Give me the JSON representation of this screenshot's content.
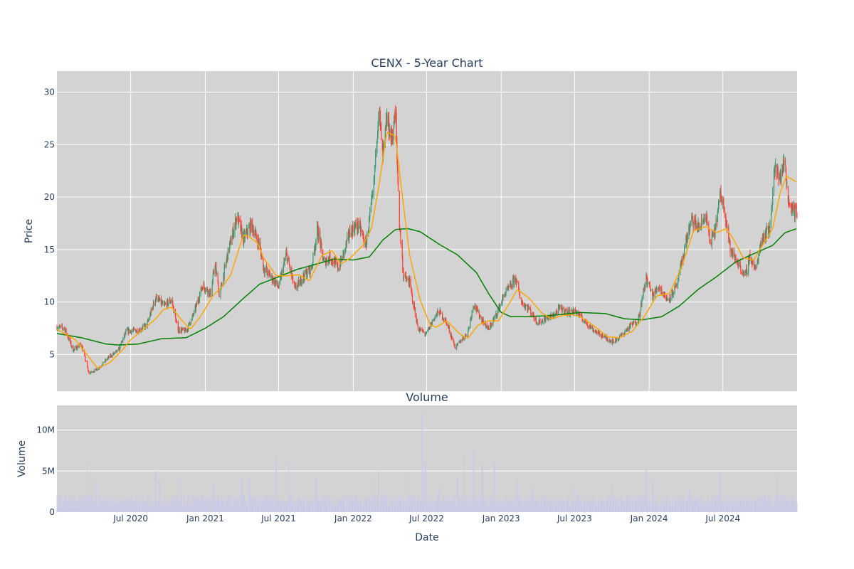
{
  "chart_data": [
    {
      "type": "candlestick",
      "title": "CENX - 5-Year Chart",
      "ylabel": "Price",
      "ylim": [
        1.5,
        32
      ],
      "xlim": [
        "2020-01-01",
        "2024-12-31"
      ],
      "yticks": [
        5,
        10,
        15,
        20,
        25,
        30
      ],
      "grid": true,
      "colors": {
        "up": "#3d9970",
        "down": "#ff4136",
        "ma_short": "#ffa500",
        "ma_long": "#008000",
        "plot_bg": "#d3d3d3"
      },
      "price_anchors": [
        [
          "2020-01-01",
          7.6
        ],
        [
          "2020-01-20",
          7.5
        ],
        [
          "2020-02-10",
          5.4
        ],
        [
          "2020-03-01",
          6.0
        ],
        [
          "2020-03-20",
          3.2
        ],
        [
          "2020-04-10",
          3.6
        ],
        [
          "2020-05-10",
          4.8
        ],
        [
          "2020-06-01",
          5.4
        ],
        [
          "2020-06-20",
          7.2
        ],
        [
          "2020-07-20",
          7.3
        ],
        [
          "2020-08-10",
          7.8
        ],
        [
          "2020-09-01",
          10.5
        ],
        [
          "2020-09-20",
          9.6
        ],
        [
          "2020-10-10",
          10.2
        ],
        [
          "2020-10-25",
          7.4
        ],
        [
          "2020-11-15",
          7.2
        ],
        [
          "2020-12-05",
          9.0
        ],
        [
          "2020-12-25",
          11.6
        ],
        [
          "2021-01-15",
          10.8
        ],
        [
          "2021-01-25",
          13.7
        ],
        [
          "2021-02-05",
          10.5
        ],
        [
          "2021-02-25",
          14.5
        ],
        [
          "2021-03-20",
          18.2
        ],
        [
          "2021-04-05",
          16.0
        ],
        [
          "2021-04-25",
          17.4
        ],
        [
          "2021-05-15",
          15.4
        ],
        [
          "2021-05-25",
          13.2
        ],
        [
          "2021-06-10",
          12.5
        ],
        [
          "2021-07-01",
          11.4
        ],
        [
          "2021-07-20",
          14.6
        ],
        [
          "2021-08-10",
          11.2
        ],
        [
          "2021-09-01",
          12.5
        ],
        [
          "2021-09-20",
          13.2
        ],
        [
          "2021-10-05",
          17.0
        ],
        [
          "2021-10-20",
          13.8
        ],
        [
          "2021-11-05",
          14.3
        ],
        [
          "2021-11-25",
          13.2
        ],
        [
          "2021-12-10",
          14.8
        ],
        [
          "2021-12-25",
          16.8
        ],
        [
          "2022-01-15",
          17.3
        ],
        [
          "2022-02-01",
          15.4
        ],
        [
          "2022-02-20",
          20.5
        ],
        [
          "2022-03-05",
          28.8
        ],
        [
          "2022-03-15",
          23.5
        ],
        [
          "2022-03-25",
          27.5
        ],
        [
          "2022-04-05",
          25.5
        ],
        [
          "2022-04-15",
          27.8
        ],
        [
          "2022-04-25",
          17.5
        ],
        [
          "2022-05-05",
          12.5
        ],
        [
          "2022-05-20",
          11.8
        ],
        [
          "2022-06-10",
          7.5
        ],
        [
          "2022-06-30",
          6.9
        ],
        [
          "2022-07-20",
          8.5
        ],
        [
          "2022-08-01",
          9.1
        ],
        [
          "2022-08-20",
          8.0
        ],
        [
          "2022-09-10",
          5.6
        ],
        [
          "2022-09-25",
          6.4
        ],
        [
          "2022-10-10",
          7.0
        ],
        [
          "2022-10-25",
          9.8
        ],
        [
          "2022-11-10",
          8.6
        ],
        [
          "2022-12-01",
          7.4
        ],
        [
          "2022-12-20",
          8.8
        ],
        [
          "2023-01-10",
          10.8
        ],
        [
          "2023-01-25",
          11.5
        ],
        [
          "2023-02-05",
          12.3
        ],
        [
          "2023-02-20",
          10.0
        ],
        [
          "2023-03-10",
          9.4
        ],
        [
          "2023-04-01",
          8.0
        ],
        [
          "2023-04-20",
          8.4
        ],
        [
          "2023-05-10",
          8.7
        ],
        [
          "2023-05-25",
          9.4
        ],
        [
          "2023-06-15",
          9.0
        ],
        [
          "2023-07-05",
          9.1
        ],
        [
          "2023-07-25",
          8.2
        ],
        [
          "2023-08-15",
          7.4
        ],
        [
          "2023-09-10",
          6.7
        ],
        [
          "2023-10-05",
          6.2
        ],
        [
          "2023-10-25",
          6.8
        ],
        [
          "2023-11-15",
          7.7
        ],
        [
          "2023-12-05",
          8.3
        ],
        [
          "2023-12-25",
          12.3
        ],
        [
          "2024-01-10",
          10.6
        ],
        [
          "2024-01-25",
          11.5
        ],
        [
          "2024-02-15",
          10.2
        ],
        [
          "2024-03-10",
          11.5
        ],
        [
          "2024-04-01",
          15.8
        ],
        [
          "2024-04-15",
          17.8
        ],
        [
          "2024-05-05",
          17.0
        ],
        [
          "2024-05-20",
          18.4
        ],
        [
          "2024-05-30",
          15.6
        ],
        [
          "2024-06-10",
          16.5
        ],
        [
          "2024-06-25",
          20.2
        ],
        [
          "2024-07-05",
          19.0
        ],
        [
          "2024-07-20",
          14.8
        ],
        [
          "2024-08-10",
          13.6
        ],
        [
          "2024-08-25",
          12.3
        ],
        [
          "2024-09-05",
          14.4
        ],
        [
          "2024-09-20",
          13.0
        ],
        [
          "2024-10-05",
          16.2
        ],
        [
          "2024-10-25",
          17.0
        ],
        [
          "2024-11-05",
          22.6
        ],
        [
          "2024-11-20",
          22.0
        ],
        [
          "2024-12-01",
          23.5
        ],
        [
          "2024-12-10",
          19.5
        ],
        [
          "2024-12-31",
          18.3
        ]
      ],
      "moving_average_short": [
        [
          "2020-01-01",
          7.4
        ],
        [
          "2020-02-15",
          6.4
        ],
        [
          "2020-03-15",
          5.0
        ],
        [
          "2020-04-10",
          3.7
        ],
        [
          "2020-05-10",
          4.2
        ],
        [
          "2020-06-10",
          5.4
        ],
        [
          "2020-07-01",
          6.4
        ],
        [
          "2020-08-01",
          7.4
        ],
        [
          "2020-09-01",
          8.4
        ],
        [
          "2020-09-20",
          9.3
        ],
        [
          "2020-10-10",
          9.5
        ],
        [
          "2020-11-05",
          8.2
        ],
        [
          "2020-11-25",
          7.4
        ],
        [
          "2020-12-20",
          8.6
        ],
        [
          "2021-01-20",
          10.6
        ],
        [
          "2021-02-15",
          11.6
        ],
        [
          "2021-03-05",
          12.6
        ],
        [
          "2021-04-05",
          16.4
        ],
        [
          "2021-04-20",
          16.2
        ],
        [
          "2021-05-10",
          15.6
        ],
        [
          "2021-05-25",
          14.2
        ],
        [
          "2021-06-25",
          12.5
        ],
        [
          "2021-07-20",
          12.5
        ],
        [
          "2021-08-20",
          12.6
        ],
        [
          "2021-09-15",
          12.0
        ],
        [
          "2021-10-15",
          14.4
        ],
        [
          "2021-11-10",
          14.9
        ],
        [
          "2021-12-01",
          13.6
        ],
        [
          "2021-12-25",
          14.2
        ],
        [
          "2022-01-25",
          15.4
        ],
        [
          "2022-02-15",
          17.0
        ],
        [
          "2022-03-05",
          21.0
        ],
        [
          "2022-03-25",
          26.2
        ],
        [
          "2022-04-15",
          25.8
        ],
        [
          "2022-05-01",
          20.5
        ],
        [
          "2022-05-20",
          14.5
        ],
        [
          "2022-06-15",
          10.2
        ],
        [
          "2022-07-10",
          7.8
        ],
        [
          "2022-07-25",
          7.6
        ],
        [
          "2022-08-20",
          8.2
        ],
        [
          "2022-09-20",
          7.0
        ],
        [
          "2022-10-10",
          6.5
        ],
        [
          "2022-11-05",
          7.8
        ],
        [
          "2022-12-01",
          8.2
        ],
        [
          "2022-12-25",
          8.2
        ],
        [
          "2023-01-20",
          9.8
        ],
        [
          "2023-02-10",
          11.2
        ],
        [
          "2023-03-10",
          10.4
        ],
        [
          "2023-04-10",
          9.0
        ],
        [
          "2023-05-05",
          8.4
        ],
        [
          "2023-06-01",
          8.7
        ],
        [
          "2023-06-25",
          8.8
        ],
        [
          "2023-07-15",
          8.6
        ],
        [
          "2023-08-15",
          7.8
        ],
        [
          "2023-09-20",
          6.7
        ],
        [
          "2023-10-20",
          6.6
        ],
        [
          "2023-11-20",
          7.2
        ],
        [
          "2023-12-20",
          8.6
        ],
        [
          "2024-01-20",
          10.6
        ],
        [
          "2024-02-20",
          10.8
        ],
        [
          "2024-03-20",
          13.2
        ],
        [
          "2024-04-20",
          16.8
        ],
        [
          "2024-05-20",
          17.2
        ],
        [
          "2024-06-15",
          16.6
        ],
        [
          "2024-07-10",
          17.0
        ],
        [
          "2024-07-30",
          15.8
        ],
        [
          "2024-08-20",
          14.2
        ],
        [
          "2024-09-15",
          14.0
        ],
        [
          "2024-10-10",
          15.6
        ],
        [
          "2024-11-01",
          17.0
        ],
        [
          "2024-11-20",
          20.5
        ],
        [
          "2024-12-05",
          22.0
        ],
        [
          "2024-12-31",
          21.4
        ]
      ],
      "moving_average_long": [
        [
          "2020-01-01",
          7.0
        ],
        [
          "2020-03-01",
          6.6
        ],
        [
          "2020-05-01",
          6.0
        ],
        [
          "2020-06-01",
          5.9
        ],
        [
          "2020-07-20",
          6.0
        ],
        [
          "2020-09-15",
          6.5
        ],
        [
          "2020-11-15",
          6.6
        ],
        [
          "2021-01-01",
          7.5
        ],
        [
          "2021-02-15",
          8.6
        ],
        [
          "2021-04-01",
          10.2
        ],
        [
          "2021-05-15",
          11.7
        ],
        [
          "2021-07-01",
          12.4
        ],
        [
          "2021-08-15",
          13.1
        ],
        [
          "2021-10-01",
          13.6
        ],
        [
          "2021-11-15",
          14.1
        ],
        [
          "2022-01-01",
          14.0
        ],
        [
          "2022-02-10",
          14.3
        ],
        [
          "2022-03-15",
          15.9
        ],
        [
          "2022-04-15",
          16.9
        ],
        [
          "2022-05-15",
          17.0
        ],
        [
          "2022-06-15",
          16.7
        ],
        [
          "2022-08-01",
          15.5
        ],
        [
          "2022-09-15",
          14.5
        ],
        [
          "2022-11-01",
          12.8
        ],
        [
          "2022-12-01",
          10.8
        ],
        [
          "2023-01-01",
          9.0
        ],
        [
          "2023-01-25",
          8.6
        ],
        [
          "2023-03-01",
          8.6
        ],
        [
          "2023-05-01",
          8.7
        ],
        [
          "2023-07-15",
          9.0
        ],
        [
          "2023-09-15",
          8.9
        ],
        [
          "2023-11-01",
          8.4
        ],
        [
          "2023-12-15",
          8.3
        ],
        [
          "2024-02-01",
          8.6
        ],
        [
          "2024-03-15",
          9.6
        ],
        [
          "2024-05-01",
          11.2
        ],
        [
          "2024-06-15",
          12.4
        ],
        [
          "2024-08-01",
          13.8
        ],
        [
          "2024-09-15",
          14.6
        ],
        [
          "2024-11-01",
          15.4
        ],
        [
          "2024-12-01",
          16.6
        ],
        [
          "2024-12-31",
          17.0
        ]
      ]
    },
    {
      "type": "bar",
      "title": "Volume",
      "xlabel": "Date",
      "ylabel": "Volume",
      "ylim": [
        0,
        13000000
      ],
      "yticks": [
        {
          "value": 0,
          "label": "0"
        },
        {
          "value": 5000000,
          "label": "5M"
        },
        {
          "value": 10000000,
          "label": "10M"
        }
      ],
      "xticks": [
        {
          "date": "2020-07-01",
          "label": "Jul 2020"
        },
        {
          "date": "2021-01-01",
          "label": "Jan 2021"
        },
        {
          "date": "2021-07-01",
          "label": "Jul 2021"
        },
        {
          "date": "2022-01-01",
          "label": "Jan 2022"
        },
        {
          "date": "2022-07-01",
          "label": "Jul 2022"
        },
        {
          "date": "2023-01-01",
          "label": "Jan 2023"
        },
        {
          "date": "2023-07-01",
          "label": "Jul 2023"
        },
        {
          "date": "2024-01-01",
          "label": "Jan 2024"
        },
        {
          "date": "2024-07-01",
          "label": "Jul 2024"
        }
      ],
      "colors": {
        "bar": "#c9c9ea",
        "plot_bg": "#d3d3d3"
      },
      "volume_baseline": 1500000,
      "volume_spikes": [
        [
          "2020-03-15",
          6200000
        ],
        [
          "2020-04-05",
          4000000
        ],
        [
          "2020-09-01",
          5000000
        ],
        [
          "2020-09-10",
          3800000
        ],
        [
          "2020-11-01",
          4200000
        ],
        [
          "2021-01-20",
          3500000
        ],
        [
          "2021-04-01",
          4000000
        ],
        [
          "2021-04-20",
          4200000
        ],
        [
          "2021-06-25",
          6800000
        ],
        [
          "2021-07-25",
          6200000
        ],
        [
          "2021-10-01",
          4200000
        ],
        [
          "2022-02-20",
          4200000
        ],
        [
          "2022-03-05",
          5000000
        ],
        [
          "2022-05-15",
          4800000
        ],
        [
          "2022-06-20",
          12200000
        ],
        [
          "2022-06-28",
          6000000
        ],
        [
          "2022-08-01",
          3200000
        ],
        [
          "2022-09-15",
          4200000
        ],
        [
          "2022-10-01",
          6700000
        ],
        [
          "2022-10-25",
          7400000
        ],
        [
          "2022-11-15",
          5800000
        ],
        [
          "2022-12-15",
          6000000
        ],
        [
          "2023-02-10",
          4000000
        ],
        [
          "2023-03-20",
          3200000
        ],
        [
          "2023-07-01",
          3200000
        ],
        [
          "2023-10-01",
          3200000
        ],
        [
          "2023-12-25",
          5300000
        ],
        [
          "2024-01-10",
          4000000
        ],
        [
          "2024-04-10",
          2800000
        ],
        [
          "2024-06-25",
          4600000
        ],
        [
          "2024-11-10",
          4500000
        ],
        [
          "2024-12-20",
          1900000
        ]
      ]
    }
  ]
}
